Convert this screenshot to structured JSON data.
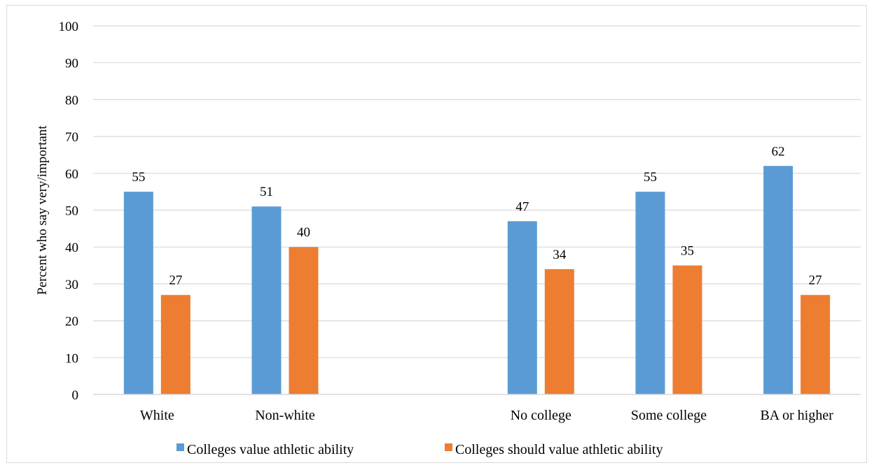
{
  "chart_data": {
    "type": "bar",
    "title": "",
    "xlabel": "",
    "ylabel": "Percent who say very/important",
    "ylim": [
      0,
      100
    ],
    "yticks": [
      0,
      10,
      20,
      30,
      40,
      50,
      60,
      70,
      80,
      90,
      100
    ],
    "grid": true,
    "legend_position": "bottom",
    "categories": [
      "White",
      "Non-white",
      "",
      "No college",
      "Some college",
      "BA or higher"
    ],
    "series": [
      {
        "name": "Colleges value athletic ability",
        "color": "#5b9bd5",
        "values": [
          55,
          51,
          null,
          47,
          55,
          62
        ]
      },
      {
        "name": "Colleges should value athletic ability",
        "color": "#ed7d31",
        "values": [
          27,
          40,
          null,
          34,
          35,
          27
        ]
      }
    ]
  }
}
